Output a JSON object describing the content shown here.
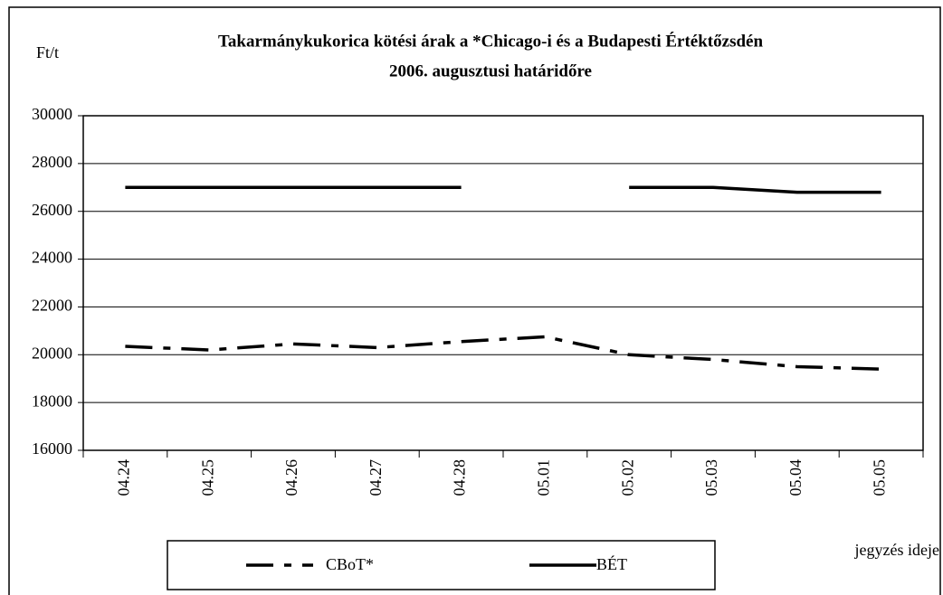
{
  "chart_data": {
    "type": "line",
    "title": [
      "Takarmánykukorica kötési árak a *Chicago-i és a Budapesti Értéktőzsdén",
      "2006. augusztusi határidőre"
    ],
    "y_label": "Ft/t",
    "x_label": "jegyzés ideje",
    "categories": [
      "04.24",
      "04.25",
      "04.26",
      "04.27",
      "04.28",
      "05.01",
      "05.02",
      "05.03",
      "05.04",
      "05.05"
    ],
    "series": [
      {
        "name": "CBoT*",
        "color": "#000000",
        "style": "dash-dot",
        "values": [
          20350,
          20200,
          20450,
          20300,
          20550,
          20750,
          20000,
          19800,
          19500,
          19400
        ]
      },
      {
        "name": "BÉT",
        "color": "#000000",
        "style": "solid",
        "values": [
          27000,
          27000,
          27000,
          27000,
          27000,
          null,
          27000,
          27000,
          26800,
          26800
        ]
      }
    ],
    "ylim": [
      16000,
      30000
    ],
    "yticks": [
      16000,
      18000,
      20000,
      22000,
      24000,
      26000,
      28000,
      30000
    ],
    "grid": true,
    "legend": "bottom"
  }
}
